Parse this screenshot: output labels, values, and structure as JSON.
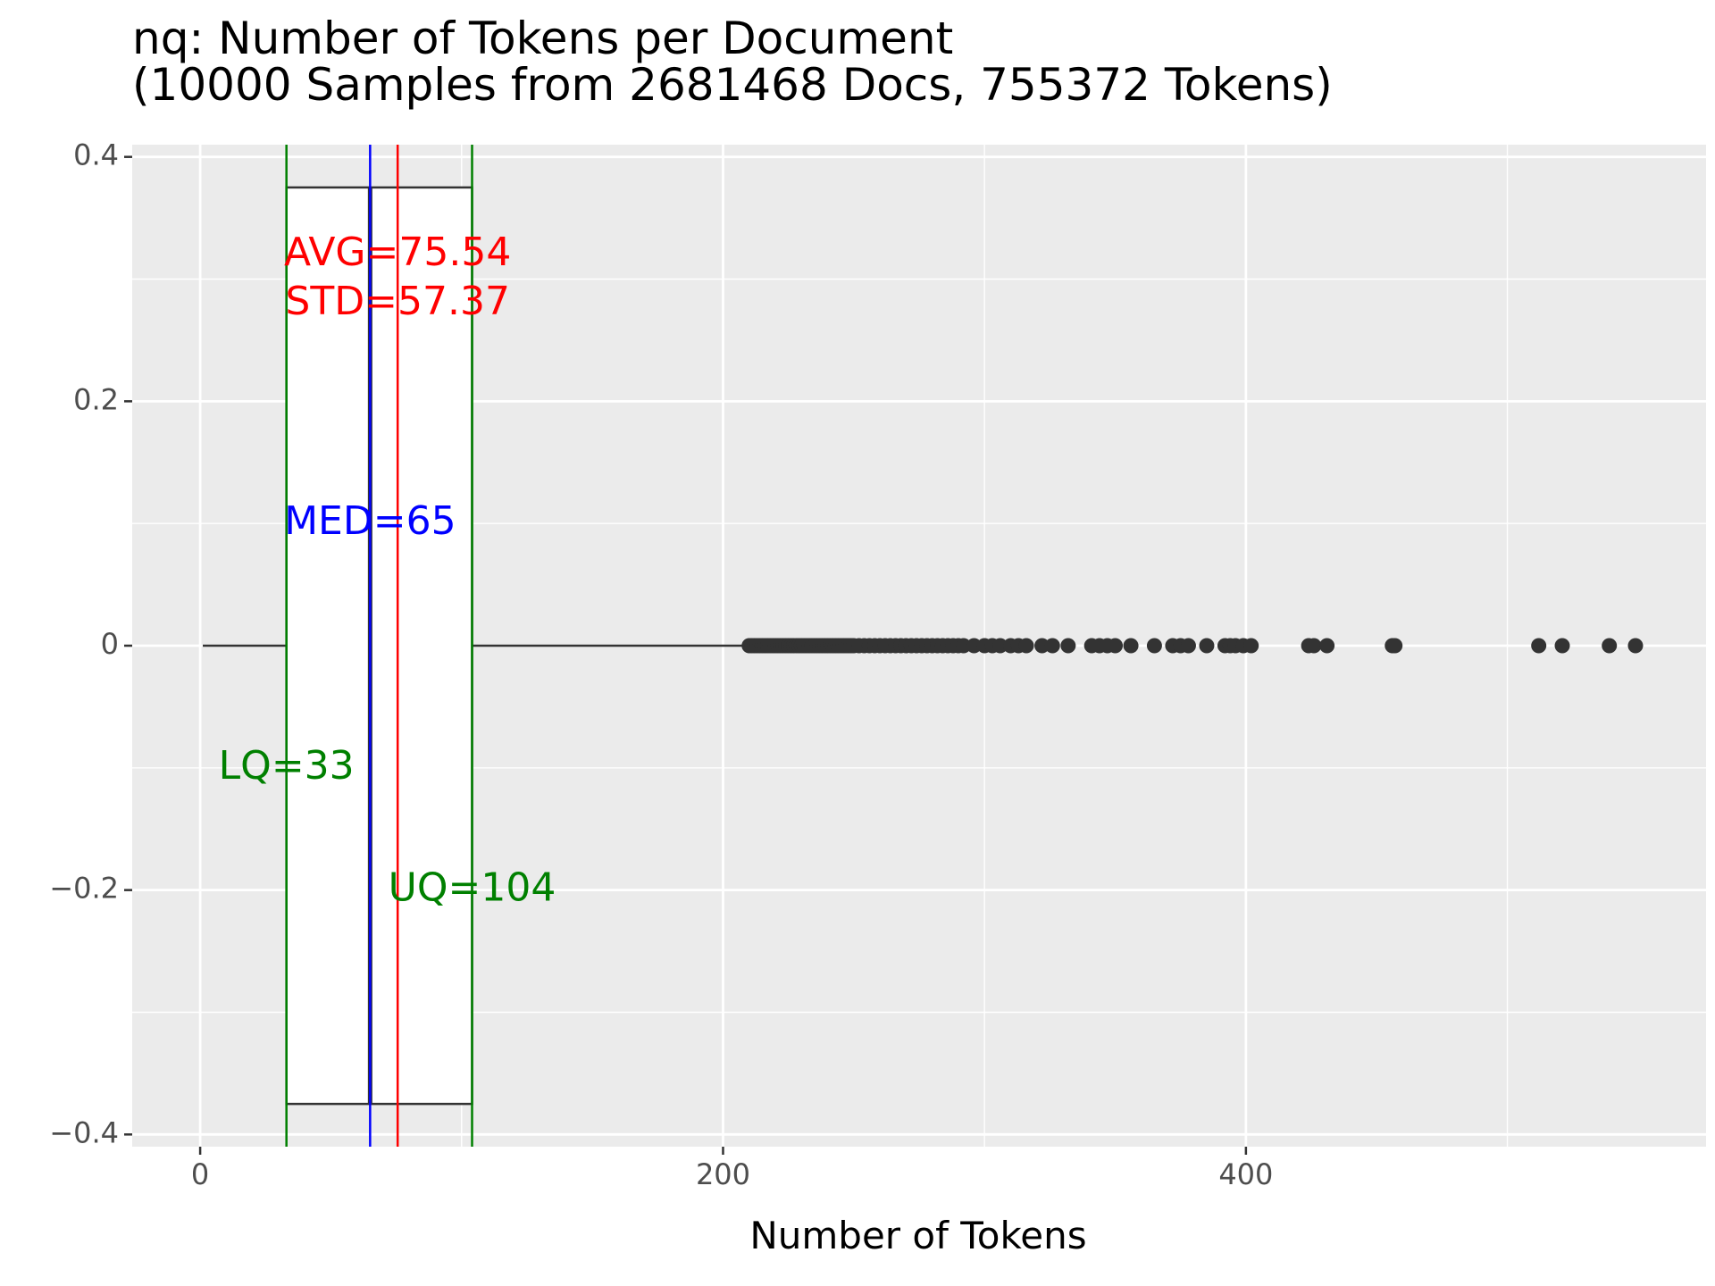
{
  "chart_data": {
    "type": "boxplot",
    "title": "nq: Number of Tokens per Document",
    "subtitle": "(10000 Samples from 2681468 Docs, 755372 Tokens)",
    "xlabel": "Number of Tokens",
    "ylabel": "",
    "xlim": [
      -26,
      576
    ],
    "ylim": [
      -0.41,
      0.41
    ],
    "x_ticks": [
      0,
      200,
      400
    ],
    "y_ticks": [
      0.4,
      0.2,
      0,
      -0.2,
      -0.4
    ],
    "y_tick_labels": [
      "0.4",
      "0.2",
      "0",
      "−0.2",
      "−0.4"
    ],
    "x_minor_gridlines": [
      100,
      300,
      500
    ],
    "y_minor_gridlines": [
      0.3,
      0.1,
      -0.1,
      -0.3
    ],
    "grid": true,
    "background_color": "#ebebeb",
    "box": {
      "whisker_low": 1,
      "q1": 33,
      "median": 65,
      "q3": 104,
      "whisker_high": 209,
      "y_center": 0,
      "y_bottom": -0.375,
      "y_top": 0.375
    },
    "outliers": [
      210,
      211,
      212,
      213,
      214,
      215,
      216,
      217,
      218,
      219,
      220,
      221,
      222,
      223,
      224,
      225,
      226,
      227,
      228,
      229,
      230,
      231,
      232,
      233,
      234,
      235,
      236,
      237,
      238,
      239,
      240,
      241,
      242,
      243,
      244,
      245,
      246,
      247,
      248,
      249,
      250,
      252,
      254,
      256,
      258,
      260,
      262,
      264,
      266,
      268,
      270,
      272,
      274,
      276,
      278,
      280,
      282,
      284,
      286,
      288,
      290,
      292,
      296,
      300,
      303,
      306,
      310,
      313,
      316,
      322,
      326,
      332,
      341,
      344,
      347,
      350,
      356,
      365,
      372,
      375,
      378,
      385,
      392,
      394,
      396,
      399,
      402,
      424,
      426,
      431,
      456,
      457,
      512,
      521,
      539,
      549
    ],
    "reference_lines": [
      {
        "name": "LQ",
        "value": 33,
        "color": "#008000"
      },
      {
        "name": "UQ",
        "value": 104,
        "color": "#008000"
      },
      {
        "name": "MED",
        "value": 65,
        "color": "#0000ff"
      },
      {
        "name": "AVG",
        "value": 75.54,
        "color": "#ff0000"
      }
    ],
    "annotations": [
      {
        "text": "AVG=75.54",
        "x": 75.54,
        "y": 0.32,
        "color": "#ff0000"
      },
      {
        "text": "STD=57.37",
        "x": 75.54,
        "y": 0.28,
        "color": "#ff0000"
      },
      {
        "text": "MED=65",
        "x": 65,
        "y": 0.1,
        "color": "#0000ff"
      },
      {
        "text": "LQ=33",
        "x": 33,
        "y": -0.1,
        "color": "#008000"
      },
      {
        "text": "UQ=104",
        "x": 104,
        "y": -0.2,
        "color": "#008000"
      }
    ]
  }
}
